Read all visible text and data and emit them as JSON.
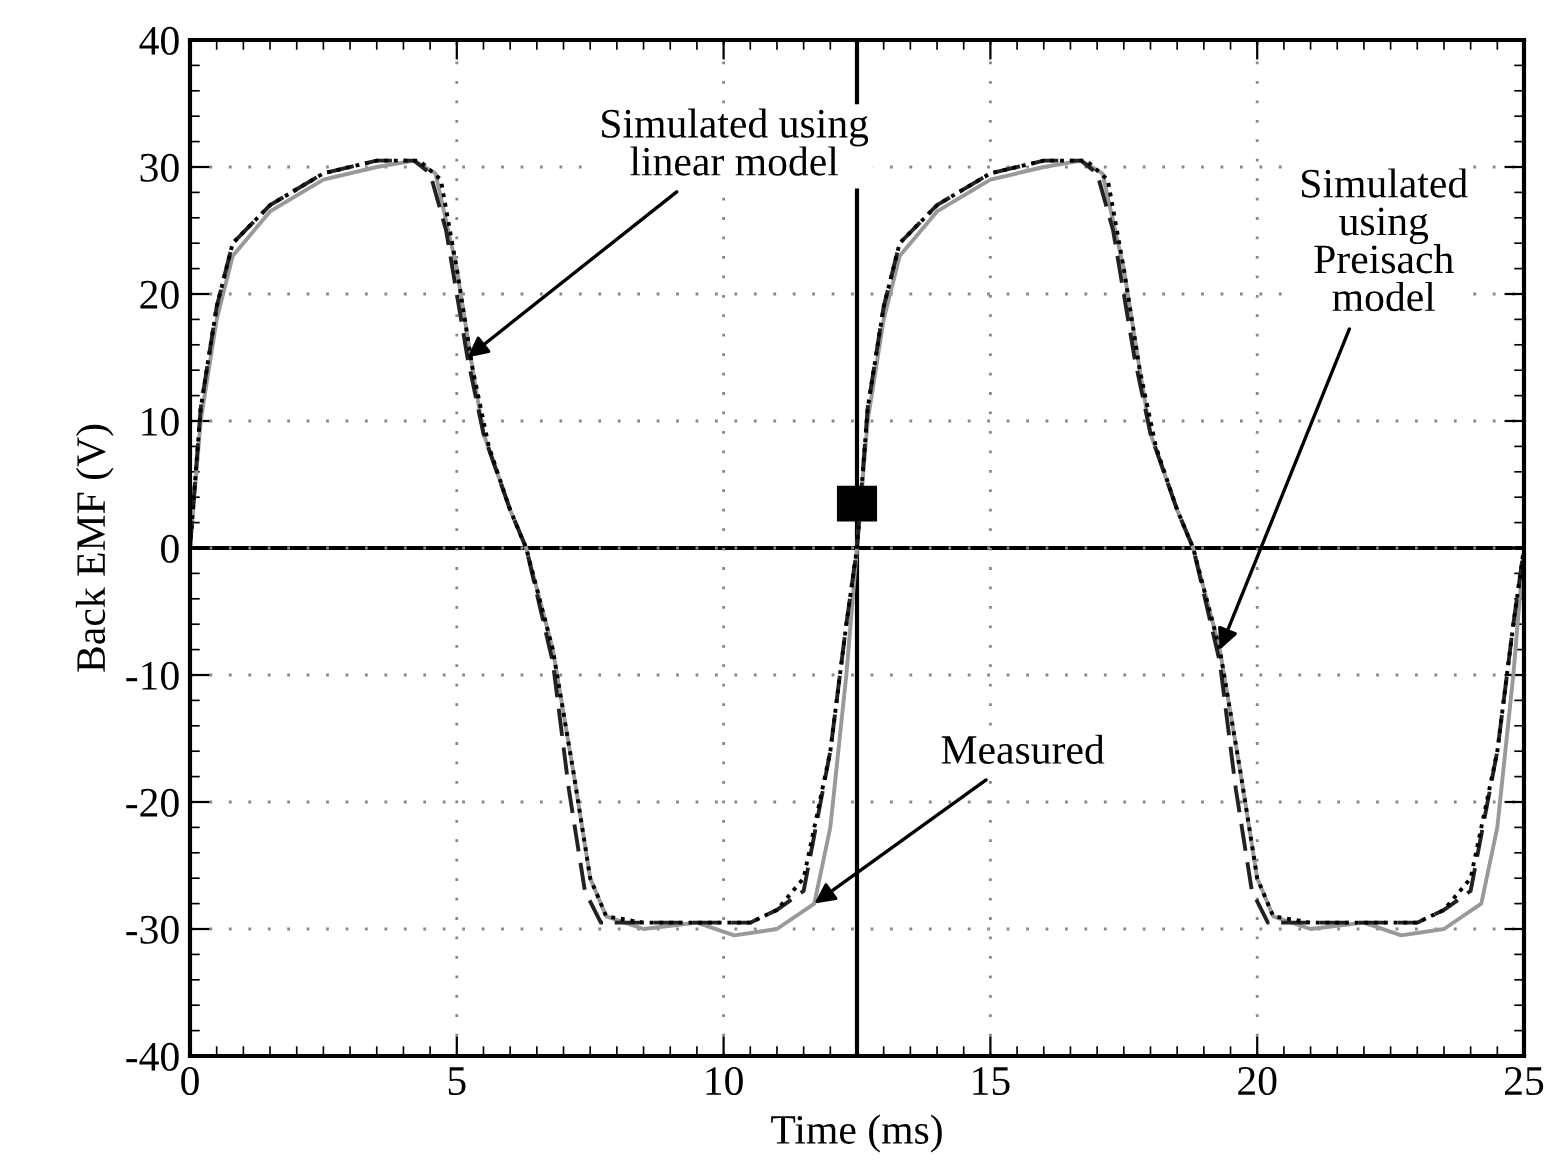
{
  "chart_data": {
    "type": "line",
    "xlabel": "Time (ms)",
    "ylabel": "Back EMF (V)",
    "xlim": [
      0,
      25
    ],
    "ylim": [
      -40,
      40
    ],
    "xticks": [
      0,
      5,
      10,
      15,
      20,
      25
    ],
    "yticks": [
      -40,
      -30,
      -20,
      -10,
      0,
      10,
      20,
      30,
      40
    ],
    "grid": true,
    "ref_lines": [
      {
        "axis": "y",
        "value": 0,
        "color": "#000000"
      },
      {
        "axis": "x",
        "value": 12.5,
        "color": "#000000"
      }
    ],
    "series": [
      {
        "color": "#999999",
        "line_style": "solid",
        "x": [
          0,
          0.2,
          0.5,
          0.8,
          1.5,
          2.5,
          3.5,
          4.2,
          4.6,
          5.0,
          5.3,
          5.5,
          6.0,
          6.3,
          6.8,
          7.2,
          7.5,
          7.8,
          8.5,
          9.5,
          10.2,
          11.0,
          11.7,
          12.0,
          12.3,
          12.5,
          12.7,
          13.0,
          13.3,
          14.0,
          15.0,
          16.0,
          16.7,
          17.1,
          17.5,
          17.8,
          18.0,
          18.5,
          18.8,
          19.3,
          19.7,
          20.0,
          20.3,
          21.0,
          22.0,
          22.7,
          23.5,
          24.2,
          24.5,
          24.8,
          25.0
        ],
        "values": [
          0,
          10,
          18,
          23,
          26.5,
          29,
          30,
          30.5,
          29.5,
          22,
          14,
          9,
          3,
          0,
          -8,
          -18,
          -26,
          -29,
          -30,
          -29.5,
          -30.5,
          -30,
          -28,
          -22,
          -10,
          0,
          10,
          18,
          23,
          26.5,
          29,
          30,
          30.5,
          29.5,
          22,
          14,
          9,
          3,
          0,
          -8,
          -18,
          -26,
          -29,
          -30,
          -29.5,
          -30.5,
          -30,
          -28,
          -22,
          -10,
          0
        ]
      },
      {
        "color": "#222222",
        "line_style": "dashed",
        "x": [
          0,
          0.2,
          0.5,
          0.8,
          1.5,
          2.5,
          3.5,
          4.2,
          4.5,
          4.8,
          5.2,
          5.5,
          6.0,
          6.3,
          6.8,
          7.1,
          7.4,
          7.7,
          8.5,
          9.5,
          10.5,
          11.0,
          11.5,
          12.0,
          12.3,
          12.5,
          12.7,
          13.0,
          13.3,
          14.0,
          15.0,
          16.0,
          16.7,
          17.0,
          17.3,
          17.7,
          18.0,
          18.5,
          18.8,
          19.3,
          19.6,
          19.9,
          20.2,
          21.0,
          22.0,
          23.0,
          23.5,
          24.0,
          24.5,
          24.8,
          25.0
        ],
        "values": [
          0,
          11,
          19,
          24,
          27,
          29.5,
          30.5,
          30.5,
          29.5,
          25,
          15,
          9,
          3,
          0,
          -9,
          -19,
          -27,
          -29.5,
          -29.5,
          -29.5,
          -29.5,
          -28.5,
          -27,
          -16,
          -6,
          0,
          11,
          19,
          24,
          27,
          29.5,
          30.5,
          30.5,
          29.5,
          25,
          15,
          9,
          3,
          0,
          -9,
          -19,
          -27,
          -29.5,
          -29.5,
          -29.5,
          -29.5,
          -28.5,
          -27,
          -16,
          -6,
          0
        ]
      },
      {
        "color": "#000000",
        "line_style": "dotted",
        "x": [
          0,
          0.2,
          0.5,
          0.8,
          1.5,
          2.5,
          3.5,
          4.3,
          4.7,
          5.0,
          5.3,
          5.6,
          6.0,
          6.3,
          6.8,
          7.2,
          7.5,
          7.8,
          8.5,
          9.5,
          10.5,
          11.0,
          11.5,
          12.0,
          12.3,
          12.5,
          12.7,
          13.0,
          13.3,
          14.0,
          15.0,
          16.0,
          16.8,
          17.2,
          17.5,
          17.8,
          18.1,
          18.5,
          18.8,
          19.3,
          19.7,
          20.0,
          20.3,
          21.0,
          22.0,
          23.0,
          23.5,
          24.0,
          24.5,
          24.8,
          25.0
        ],
        "values": [
          0,
          11,
          19,
          24,
          27,
          29.5,
          30.5,
          30.5,
          29,
          22,
          14,
          8,
          3,
          0,
          -8,
          -18,
          -26,
          -29,
          -29.5,
          -29.5,
          -29.5,
          -28.5,
          -26,
          -16,
          -6,
          0,
          11,
          19,
          24,
          27,
          29.5,
          30.5,
          30.5,
          29,
          22,
          14,
          8,
          3,
          0,
          -8,
          -18,
          -26,
          -29,
          -29.5,
          -29.5,
          -29.5,
          -28.5,
          -26,
          -16,
          -6,
          0
        ]
      }
    ],
    "annotations": [
      {
        "text": "Simulated using\nlinear model",
        "x": 5.2,
        "y": 15
      },
      {
        "text": "Simulated\nusing\nPreisach\nmodel",
        "x": 19.3,
        "y": -8
      },
      {
        "text": "Measured",
        "x": 11.7,
        "y": -28
      }
    ]
  }
}
